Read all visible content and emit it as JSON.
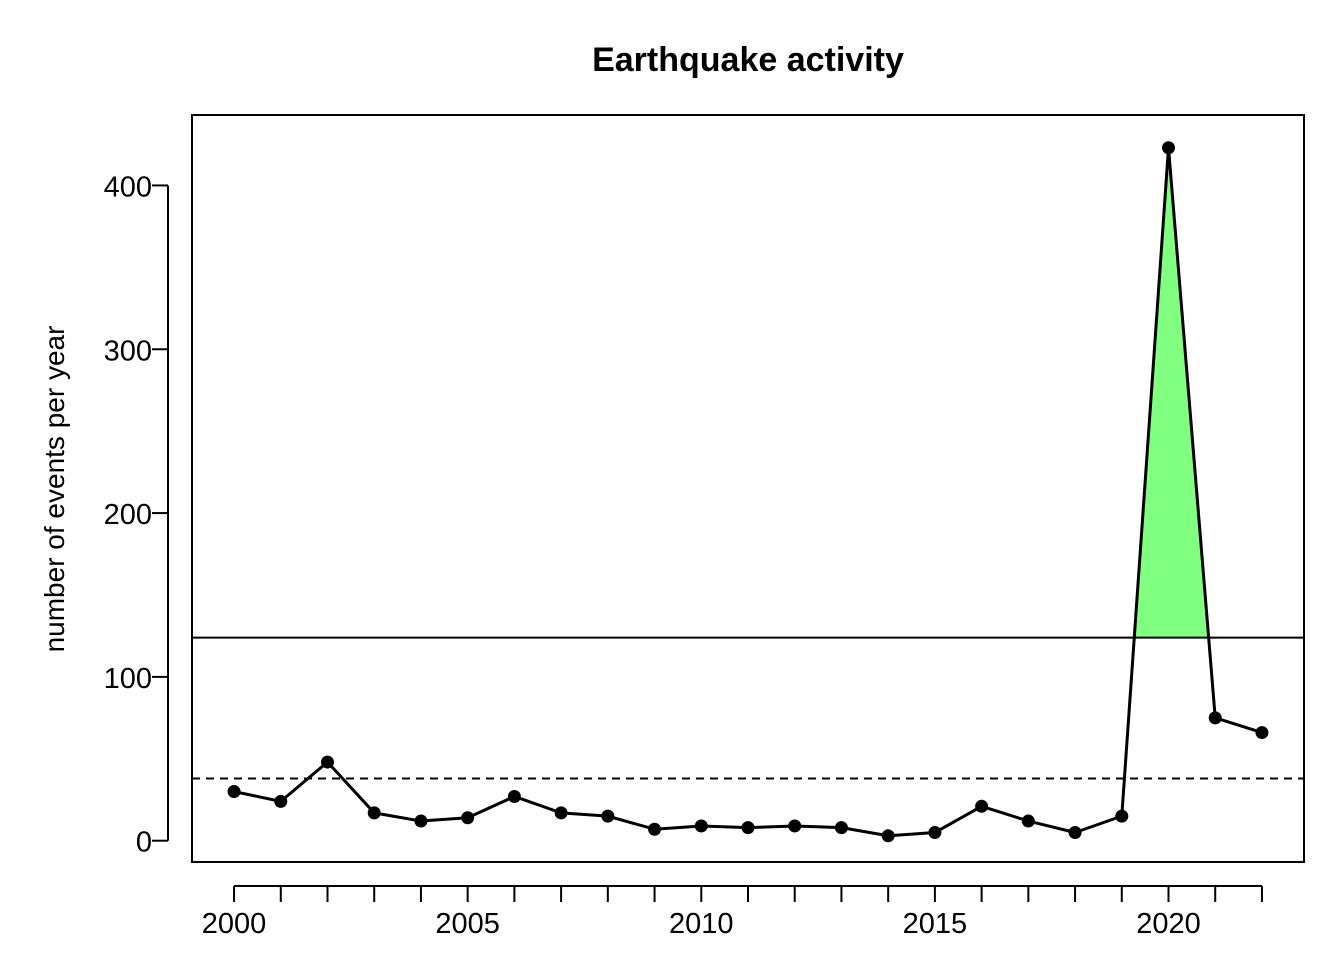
{
  "chart_data": {
    "type": "line",
    "title": "Earthquake activity",
    "xlabel": "",
    "ylabel": "number of events per year",
    "xlim": [
      1999.1,
      2022.9
    ],
    "ylim": [
      -13,
      443
    ],
    "x_ticks": [
      2000,
      2001,
      2002,
      2003,
      2004,
      2005,
      2006,
      2007,
      2008,
      2009,
      2010,
      2011,
      2012,
      2013,
      2014,
      2015,
      2016,
      2017,
      2018,
      2019,
      2020,
      2021,
      2022
    ],
    "x_tick_labels": [
      {
        "x": 2000,
        "label": "2000"
      },
      {
        "x": 2005,
        "label": "2005"
      },
      {
        "x": 2010,
        "label": "2010"
      },
      {
        "x": 2015,
        "label": "2015"
      },
      {
        "x": 2020,
        "label": "2020"
      }
    ],
    "y_ticks": [
      {
        "y": 0,
        "label": "0"
      },
      {
        "y": 100,
        "label": "100"
      },
      {
        "y": 200,
        "label": "200"
      },
      {
        "y": 300,
        "label": "300"
      },
      {
        "y": 400,
        "label": "400"
      }
    ],
    "x": [
      2000,
      2001,
      2002,
      2003,
      2004,
      2005,
      2006,
      2007,
      2008,
      2009,
      2010,
      2011,
      2012,
      2013,
      2014,
      2015,
      2016,
      2017,
      2018,
      2019,
      2020,
      2021,
      2022
    ],
    "values": [
      30,
      24,
      48,
      17,
      12,
      14,
      27,
      17,
      15,
      7,
      9,
      8,
      9,
      8,
      3,
      5,
      21,
      12,
      5,
      15,
      423,
      75,
      66
    ],
    "reference_lines": [
      {
        "y": 124,
        "style": "solid"
      },
      {
        "y": 38,
        "style": "dashed"
      }
    ],
    "highlight": {
      "above": 124,
      "color": "#80ff80"
    },
    "line_color": "#000000",
    "marker": "filled-circle",
    "grid": false,
    "legend": "none"
  }
}
